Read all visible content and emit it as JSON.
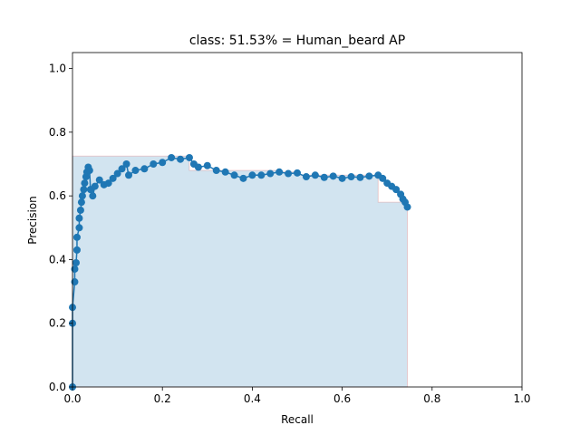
{
  "chart_data": {
    "type": "pr-curve",
    "title": "class: 51.53% = Human_beard AP",
    "x_label": "Recall",
    "y_label": "Precision",
    "color": "#1f77b4",
    "x": [
      0,
      0,
      0,
      0.005,
      0.005,
      0.008,
      0.01,
      0.01,
      0.015,
      0.015,
      0.018,
      0.02,
      0.022,
      0.025,
      0.027,
      0.03,
      0.032,
      0.035,
      0.038,
      0.04,
      0.045,
      0.05,
      0.06,
      0.07,
      0.08,
      0.09,
      0.1,
      0.11,
      0.12,
      0.125,
      0.14,
      0.16,
      0.18,
      0.2,
      0.22,
      0.24,
      0.26,
      0.27,
      0.28,
      0.3,
      0.32,
      0.34,
      0.36,
      0.38,
      0.4,
      0.42,
      0.44,
      0.46,
      0.48,
      0.5,
      0.52,
      0.54,
      0.56,
      0.58,
      0.6,
      0.62,
      0.64,
      0.66,
      0.68,
      0.69,
      0.7,
      0.71,
      0.72,
      0.73,
      0.735,
      0.74,
      0.745
    ],
    "values": [
      0,
      0.2,
      0.25,
      0.33,
      0.37,
      0.39,
      0.43,
      0.47,
      0.5,
      0.53,
      0.555,
      0.58,
      0.6,
      0.62,
      0.64,
      0.66,
      0.675,
      0.69,
      0.68,
      0.62,
      0.6,
      0.63,
      0.65,
      0.635,
      0.64,
      0.655,
      0.67,
      0.685,
      0.7,
      0.665,
      0.68,
      0.685,
      0.7,
      0.705,
      0.72,
      0.715,
      0.72,
      0.7,
      0.69,
      0.695,
      0.68,
      0.675,
      0.665,
      0.655,
      0.665,
      0.665,
      0.67,
      0.675,
      0.67,
      0.672,
      0.66,
      0.665,
      0.658,
      0.662,
      0.655,
      0.66,
      0.658,
      0.662,
      0.665,
      0.655,
      0.64,
      0.63,
      0.62,
      0.605,
      0.59,
      0.58,
      0.565
    ],
    "fill": {
      "color": "#1f77b4",
      "edge_color": "#d62728",
      "x": [
        0,
        0.26,
        0.26,
        0.46,
        0.46,
        0.5,
        0.5,
        0.68,
        0.68,
        0.745
      ],
      "values": [
        0.725,
        0.725,
        0.68,
        0.68,
        0.675,
        0.675,
        0.665,
        0.665,
        0.58,
        0.58
      ]
    },
    "xlim": [
      0,
      1
    ],
    "ylim": [
      0,
      1.05
    ],
    "xticks": [
      {
        "value": 0,
        "label": "0.0"
      },
      0.2,
      0.4,
      0.6,
      0.8,
      {
        "value": 1,
        "label": "1.0"
      }
    ],
    "yticks": [
      {
        "value": 0,
        "label": "0.0"
      },
      0.2,
      0.4,
      0.6,
      0.8,
      {
        "value": 1,
        "label": "1.0"
      }
    ]
  }
}
